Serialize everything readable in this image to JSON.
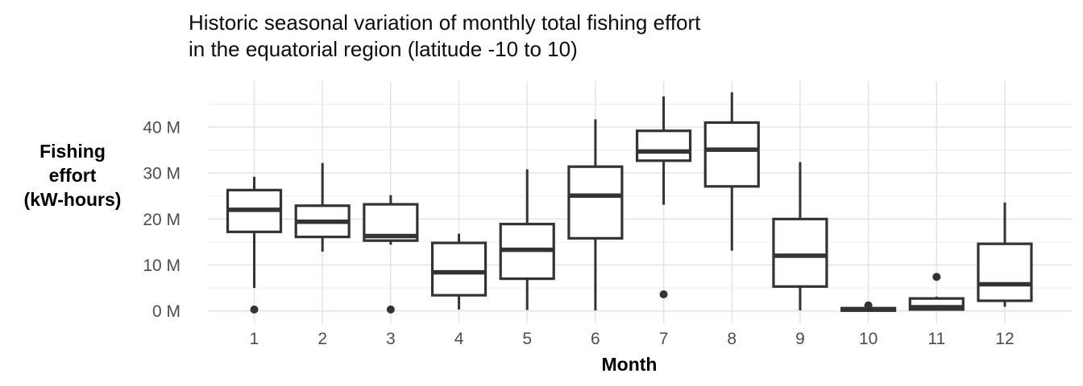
{
  "title": {
    "line1": "Historic seasonal variation of monthly total fishing effort",
    "line2": "in the equatorial region (latitude -10 to 10)"
  },
  "y_axis": {
    "label_lines": [
      "Fishing",
      "effort",
      "(kW-hours)"
    ],
    "tick_labels": [
      "0 M",
      "10 M",
      "20 M",
      "30 M",
      "40 M"
    ]
  },
  "x_axis": {
    "label": "Month",
    "tick_labels": [
      "1",
      "2",
      "3",
      "4",
      "5",
      "6",
      "7",
      "8",
      "9",
      "10",
      "11",
      "12"
    ]
  },
  "colors": {
    "background": "#ffffff",
    "box_stroke": "#333333",
    "box_fill": "#ffffff",
    "outlier_fill": "#333333",
    "grid_major": "#e5e5e5",
    "grid_minor": "#f0f0f0",
    "tick_text": "#4d4d4d",
    "title_text": "#0d0d0d",
    "axis_title_text": "#000000"
  },
  "chart_data": {
    "type": "boxplot",
    "title": "Historic seasonal variation of monthly total fishing effort in the equatorial region (latitude -10 to 10)",
    "xlabel": "Month",
    "ylabel": "Fishing effort (kW-hours)",
    "unit": "millions of kW-hours",
    "ylim": [
      -2.7,
      50
    ],
    "grid": true,
    "legend": "none",
    "categories": [
      "1",
      "2",
      "3",
      "4",
      "5",
      "6",
      "7",
      "8",
      "9",
      "10",
      "11",
      "12"
    ],
    "y_ticks": [
      {
        "value": 0,
        "label": "0 M"
      },
      {
        "value": 10,
        "label": "10 M"
      },
      {
        "value": 20,
        "label": "20 M"
      },
      {
        "value": 30,
        "label": "30 M"
      },
      {
        "value": 40,
        "label": "40 M"
      }
    ],
    "y_minor_gridlines": [
      5,
      15,
      25,
      35,
      45
    ],
    "series": [
      {
        "month": "1",
        "whisker_low": 5.0,
        "q1": 17.2,
        "median": 22.0,
        "q3": 26.3,
        "whisker_high": 29.2,
        "outliers": [
          0.3
        ]
      },
      {
        "month": "2",
        "whisker_low": 12.9,
        "q1": 16.1,
        "median": 19.4,
        "q3": 22.9,
        "whisker_high": 32.2,
        "outliers": []
      },
      {
        "month": "3",
        "whisker_low": 14.4,
        "q1": 15.3,
        "median": 16.3,
        "q3": 23.2,
        "whisker_high": 25.2,
        "outliers": [
          0.3
        ]
      },
      {
        "month": "4",
        "whisker_low": 0.3,
        "q1": 3.4,
        "median": 8.4,
        "q3": 14.8,
        "whisker_high": 16.8,
        "outliers": []
      },
      {
        "month": "5",
        "whisker_low": 0.2,
        "q1": 7.0,
        "median": 13.3,
        "q3": 18.9,
        "whisker_high": 30.8,
        "outliers": []
      },
      {
        "month": "6",
        "whisker_low": 0.1,
        "q1": 15.8,
        "median": 25.1,
        "q3": 31.4,
        "whisker_high": 41.7,
        "outliers": []
      },
      {
        "month": "7",
        "whisker_low": 23.1,
        "q1": 32.7,
        "median": 34.7,
        "q3": 39.2,
        "whisker_high": 46.7,
        "outliers": [
          3.6
        ]
      },
      {
        "month": "8",
        "whisker_low": 13.1,
        "q1": 27.1,
        "median": 35.1,
        "q3": 41.0,
        "whisker_high": 47.6,
        "outliers": []
      },
      {
        "month": "9",
        "whisker_low": 0.1,
        "q1": 5.3,
        "median": 12.0,
        "q3": 20.0,
        "whisker_high": 32.4,
        "outliers": []
      },
      {
        "month": "10",
        "whisker_low": 0.0,
        "q1": 0.05,
        "median": 0.3,
        "q3": 0.6,
        "whisker_high": 0.8,
        "outliers": [
          1.2
        ]
      },
      {
        "month": "11",
        "whisker_low": 0.05,
        "q1": 0.3,
        "median": 0.8,
        "q3": 2.7,
        "whisker_high": 3.1,
        "outliers": [
          7.4
        ]
      },
      {
        "month": "12",
        "whisker_low": 0.9,
        "q1": 2.2,
        "median": 5.8,
        "q3": 14.6,
        "whisker_high": 23.6,
        "outliers": []
      }
    ]
  }
}
